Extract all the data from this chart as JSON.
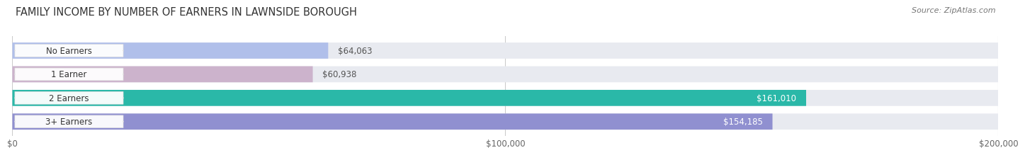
{
  "title": "FAMILY INCOME BY NUMBER OF EARNERS IN LAWNSIDE BOROUGH",
  "source": "Source: ZipAtlas.com",
  "categories": [
    "No Earners",
    "1 Earner",
    "2 Earners",
    "3+ Earners"
  ],
  "values": [
    64063,
    60938,
    161010,
    154185
  ],
  "bar_colors": [
    "#b0bfea",
    "#ccb3cc",
    "#2ab8a8",
    "#9090d0"
  ],
  "value_labels": [
    "$64,063",
    "$60,938",
    "$161,010",
    "$154,185"
  ],
  "value_label_colors_outside": "#555555",
  "value_label_colors_inside": "#ffffff",
  "xlim": [
    0,
    200000
  ],
  "xticks": [
    0,
    100000,
    200000
  ],
  "xticklabels": [
    "$0",
    "$100,000",
    "$200,000"
  ],
  "background_color": "#ffffff",
  "bar_bg_color": "#e8eaf0",
  "title_fontsize": 10.5,
  "source_fontsize": 8,
  "label_threshold": 100000
}
